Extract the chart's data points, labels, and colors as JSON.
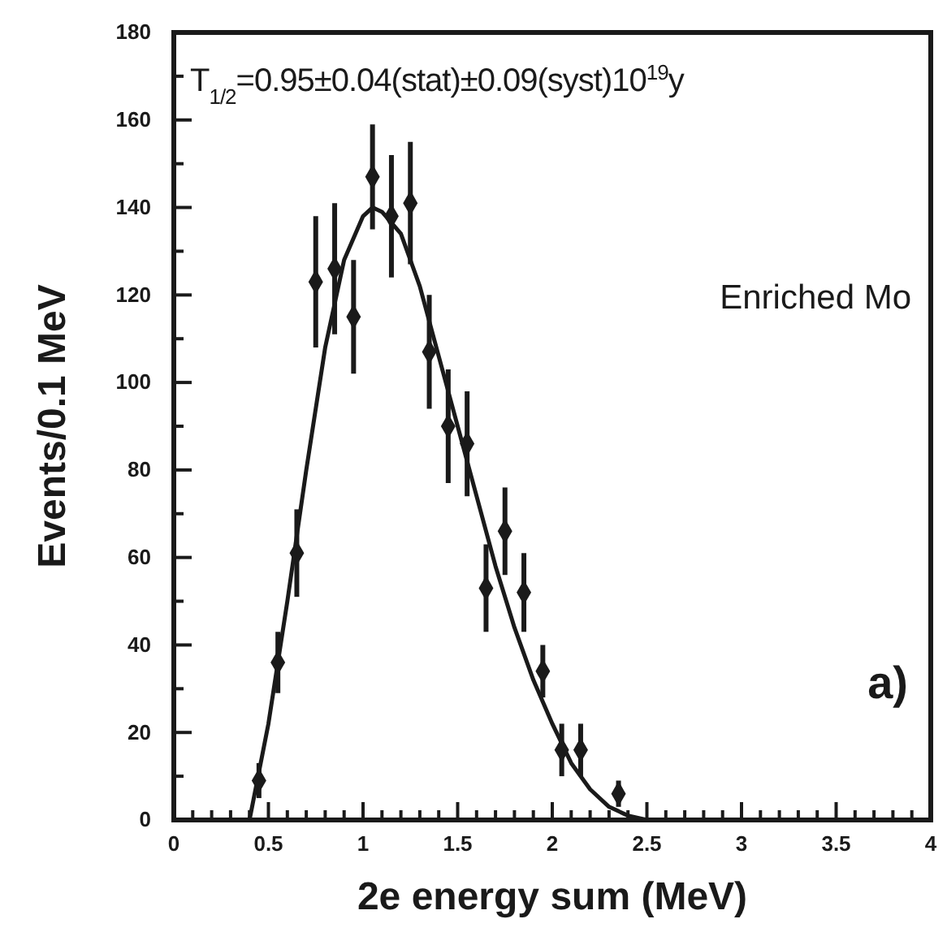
{
  "chart_data": {
    "type": "scatter",
    "xlabel": "2e energy sum  (MeV)",
    "ylabel": "Events/0.1 MeV",
    "annotations": [
      "T$_{1/2}$=0.95±0.04(stat)±0.09(syst)10$^{19}$y",
      "Enriched Mo",
      "a)"
    ],
    "xlim": [
      0,
      4
    ],
    "ylim": [
      0,
      180
    ],
    "xticks": [
      0,
      {
        "value": 0.1,
        "label": null
      },
      {
        "value": 0.2,
        "label": null
      },
      {
        "value": 0.3,
        "label": null
      },
      {
        "value": 0.4,
        "label": null
      },
      0.5,
      {
        "value": 0.6,
        "label": null
      },
      {
        "value": 0.7,
        "label": null
      },
      {
        "value": 0.8,
        "label": null
      },
      {
        "value": 0.9,
        "label": null
      },
      1,
      {
        "value": 1.1,
        "label": null
      },
      {
        "value": 1.2,
        "label": null
      },
      {
        "value": 1.3,
        "label": null
      },
      {
        "value": 1.4,
        "label": null
      },
      1.5,
      {
        "value": 1.6,
        "label": null
      },
      {
        "value": 1.7,
        "label": null
      },
      {
        "value": 1.8,
        "label": null
      },
      {
        "value": 1.9,
        "label": null
      },
      2,
      {
        "value": 2.1,
        "label": null
      },
      {
        "value": 2.2,
        "label": null
      },
      {
        "value": 2.3,
        "label": null
      },
      {
        "value": 2.4,
        "label": null
      },
      2.5,
      {
        "value": 2.6,
        "label": null
      },
      {
        "value": 2.7,
        "label": null
      },
      {
        "value": 2.8,
        "label": null
      },
      {
        "value": 2.9,
        "label": null
      },
      3,
      {
        "value": 3.1,
        "label": null
      },
      {
        "value": 3.2,
        "label": null
      },
      {
        "value": 3.3,
        "label": null
      },
      {
        "value": 3.4,
        "label": null
      },
      3.5,
      {
        "value": 3.6,
        "label": null
      },
      {
        "value": 3.7,
        "label": null
      },
      {
        "value": 3.8,
        "label": null
      },
      {
        "value": 3.9,
        "label": null
      },
      4
    ],
    "yticks": [
      0,
      {
        "value": 10,
        "label": null
      },
      20,
      {
        "value": 30,
        "label": null
      },
      40,
      {
        "value": 50,
        "label": null
      },
      60,
      {
        "value": 70,
        "label": null
      },
      80,
      {
        "value": 90,
        "label": null
      },
      100,
      {
        "value": 110,
        "label": null
      },
      120,
      {
        "value": 130,
        "label": null
      },
      140,
      {
        "value": 150,
        "label": null
      },
      160,
      {
        "value": 170,
        "label": null
      },
      180
    ],
    "grid": false,
    "series": [
      {
        "color": "#1a1a1a",
        "marker": "diamond",
        "x": [
          0.45,
          0.55,
          0.65,
          0.75,
          0.85,
          0.95,
          1.05,
          1.15,
          1.25,
          1.35,
          1.45,
          1.55,
          1.65,
          1.75,
          1.85,
          1.95,
          2.05,
          2.15,
          2.35
        ],
        "values": [
          9,
          36,
          61,
          123,
          126,
          115,
          147,
          138,
          141,
          107,
          90,
          86,
          53,
          66,
          52,
          34,
          16,
          16,
          6
        ],
        "errors": [
          4,
          7,
          10,
          15,
          15,
          13,
          12,
          14,
          14,
          13,
          13,
          12,
          10,
          10,
          9,
          6,
          6,
          6,
          3
        ]
      },
      {
        "type": "line",
        "color": "#1a1a1a",
        "marker": "none",
        "line_style": "solid",
        "x": [
          0.4,
          0.5,
          0.6,
          0.7,
          0.8,
          0.9,
          1.0,
          1.05,
          1.1,
          1.2,
          1.3,
          1.4,
          1.5,
          1.6,
          1.7,
          1.8,
          1.9,
          2.0,
          2.1,
          2.2,
          2.3,
          2.4,
          2.5,
          3.0,
          4.0
        ],
        "values": [
          0,
          22,
          50,
          80,
          108,
          128,
          138,
          140,
          139,
          134,
          122,
          106,
          90,
          74,
          58,
          44,
          32,
          22,
          13,
          7,
          3,
          1,
          0,
          0,
          0
        ]
      }
    ]
  }
}
